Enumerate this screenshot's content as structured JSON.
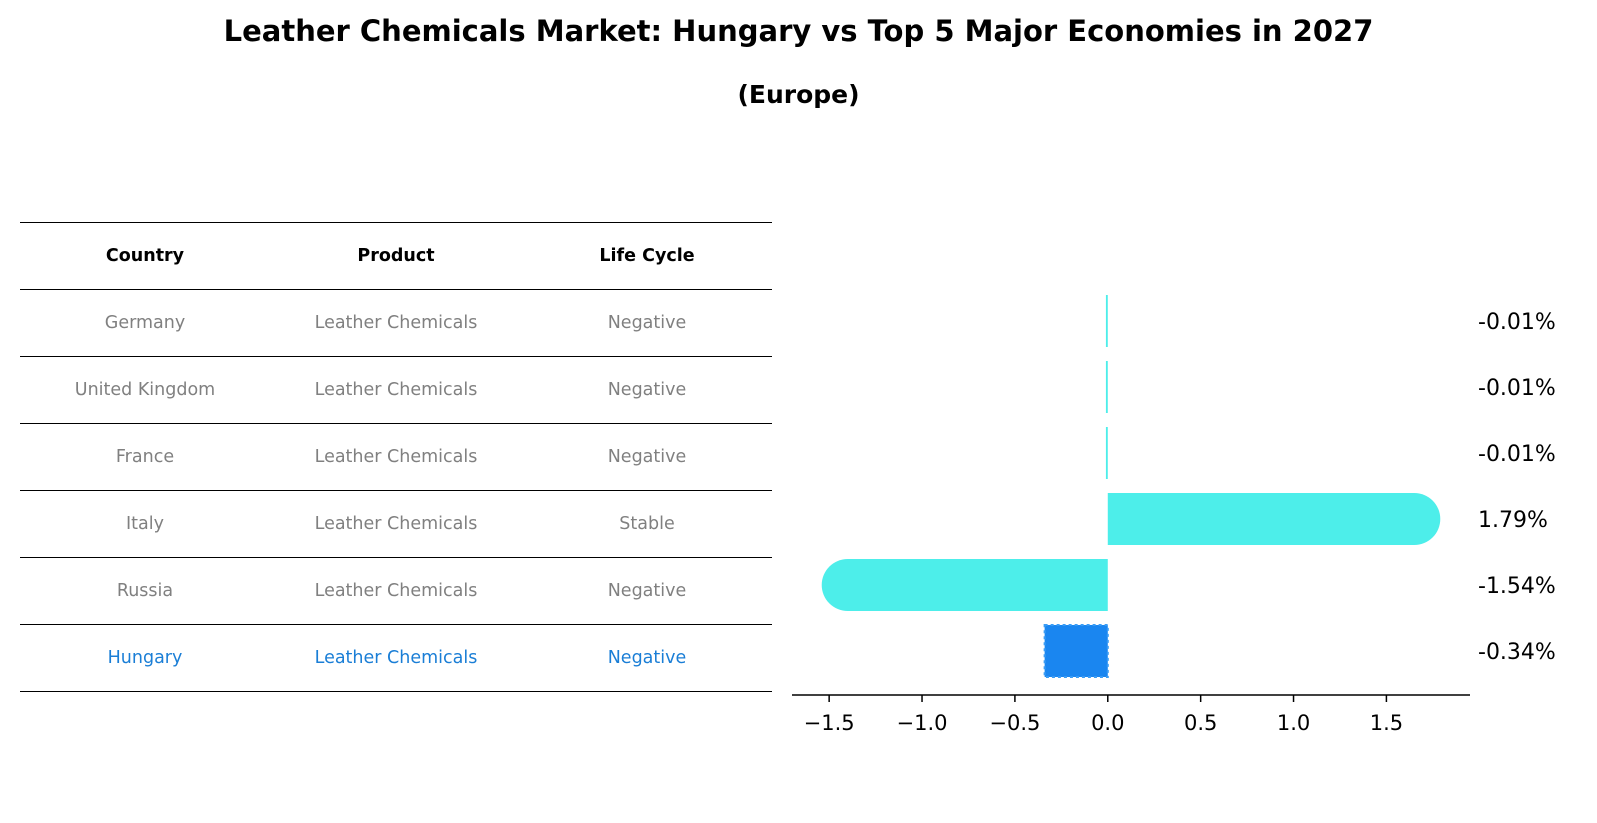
{
  "title": "Leather Chemicals Market: Hungary vs Top 5 Major Economies in 2027",
  "subtitle": "(Europe)",
  "table": {
    "headers": [
      "Country",
      "Product",
      "Life Cycle"
    ],
    "rows": [
      [
        "Germany",
        "Leather Chemicals",
        "Negative"
      ],
      [
        "United Kingdom",
        "Leather Chemicals",
        "Negative"
      ],
      [
        "France",
        "Leather Chemicals",
        "Negative"
      ],
      [
        "Italy",
        "Leather Chemicals",
        "Stable"
      ],
      [
        "Russia",
        "Leather Chemicals",
        "Negative"
      ],
      [
        "Hungary",
        "Leather Chemicals",
        "Negative"
      ]
    ],
    "highlight_row": "Hungary"
  },
  "colors": {
    "bar": "#4deeea",
    "highlight_bar": "#1a86f0",
    "highlight_text": "#1a7ed6",
    "row_text": "#808080"
  },
  "chart_data": {
    "type": "bar",
    "orientation": "horizontal",
    "categories": [
      "Germany",
      "United Kingdom",
      "France",
      "Italy",
      "Russia",
      "Hungary"
    ],
    "values": [
      -0.01,
      -0.01,
      -0.01,
      1.79,
      -1.54,
      -0.34
    ],
    "value_labels": [
      "-0.01%",
      "-0.01%",
      "-0.01%",
      "1.79%",
      "-1.54%",
      "-0.34%"
    ],
    "highlight": "Hungary",
    "xlim": [
      -1.7,
      1.95
    ],
    "xticks": [
      -1.5,
      -1.0,
      -0.5,
      0.0,
      0.5,
      1.0,
      1.5
    ],
    "xtick_labels": [
      "−1.5",
      "−1.0",
      "−0.5",
      "0.0",
      "0.5",
      "1.0",
      "1.5"
    ]
  }
}
